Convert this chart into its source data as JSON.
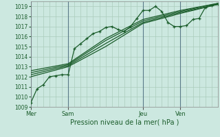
{
  "background_color": "#cce8e0",
  "plot_bg_color": "#cce8e0",
  "grid_color": "#aaccbb",
  "vline_color": "#6699aa",
  "line_color": "#1a5c2a",
  "xlabel": "Pression niveau de la mer( hPa )",
  "ylim": [
    1009,
    1019.5
  ],
  "yticks": [
    1009,
    1010,
    1011,
    1012,
    1013,
    1014,
    1015,
    1016,
    1017,
    1018,
    1019
  ],
  "xtick_labels": [
    "Mer",
    "Sam",
    "Jeu",
    "Ven"
  ],
  "xtick_positions": [
    0,
    12,
    36,
    48
  ],
  "vline_positions": [
    0,
    12,
    36,
    48
  ],
  "total_hours": 60,
  "line1": [
    [
      0,
      1009.4
    ],
    [
      2,
      1010.8
    ],
    [
      4,
      1011.2
    ],
    [
      6,
      1012.0
    ],
    [
      8,
      1012.1
    ],
    [
      10,
      1012.2
    ],
    [
      12,
      1012.2
    ],
    [
      14,
      1014.8
    ],
    [
      16,
      1015.3
    ],
    [
      18,
      1015.8
    ],
    [
      20,
      1016.3
    ],
    [
      22,
      1016.5
    ],
    [
      24,
      1016.9
    ],
    [
      26,
      1017.0
    ],
    [
      28,
      1016.7
    ],
    [
      30,
      1016.5
    ],
    [
      32,
      1017.0
    ],
    [
      34,
      1017.8
    ],
    [
      36,
      1018.6
    ],
    [
      38,
      1018.6
    ],
    [
      40,
      1019.0
    ],
    [
      42,
      1018.5
    ],
    [
      44,
      1017.4
    ],
    [
      46,
      1017.0
    ],
    [
      48,
      1017.0
    ],
    [
      50,
      1017.1
    ],
    [
      52,
      1017.7
    ],
    [
      54,
      1017.8
    ],
    [
      56,
      1018.9
    ],
    [
      58,
      1019.1
    ],
    [
      60,
      1019.2
    ]
  ],
  "line2": [
    [
      0,
      1012.0
    ],
    [
      12,
      1013.0
    ],
    [
      24,
      1015.0
    ],
    [
      36,
      1017.3
    ],
    [
      48,
      1018.3
    ],
    [
      60,
      1019.2
    ]
  ],
  "line3": [
    [
      0,
      1012.2
    ],
    [
      12,
      1013.1
    ],
    [
      24,
      1015.3
    ],
    [
      36,
      1017.4
    ],
    [
      48,
      1018.4
    ],
    [
      60,
      1019.2
    ]
  ],
  "line4": [
    [
      0,
      1012.4
    ],
    [
      12,
      1013.2
    ],
    [
      24,
      1015.6
    ],
    [
      36,
      1017.55
    ],
    [
      48,
      1018.5
    ],
    [
      60,
      1019.3
    ]
  ],
  "line5": [
    [
      0,
      1012.6
    ],
    [
      12,
      1013.3
    ],
    [
      24,
      1015.8
    ],
    [
      36,
      1017.7
    ],
    [
      48,
      1018.6
    ],
    [
      60,
      1019.3
    ]
  ]
}
